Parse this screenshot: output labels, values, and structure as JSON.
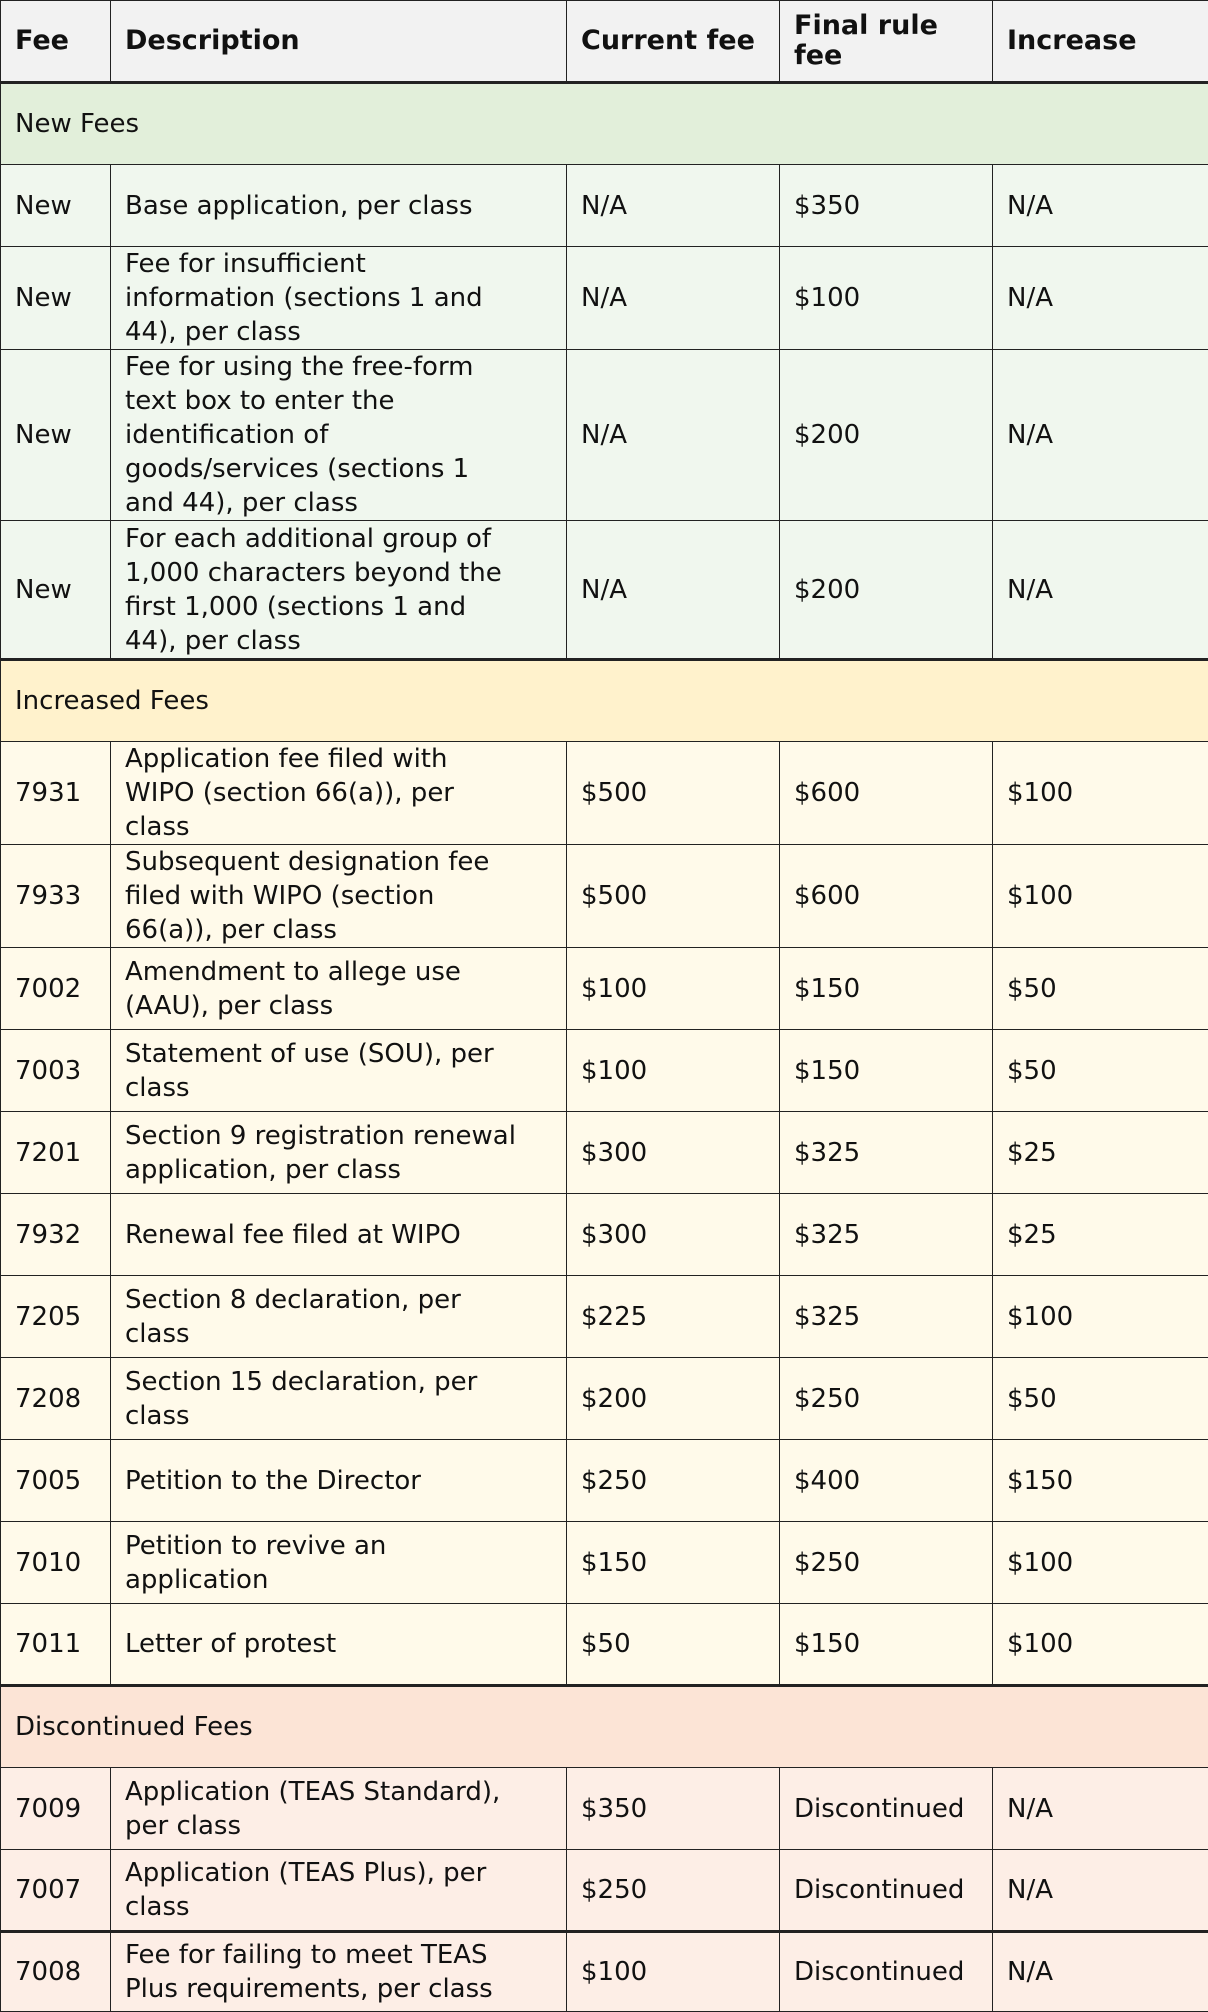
{
  "colors": {
    "header_bg": "#f2f2f2",
    "new_section_bg": "#e2efda",
    "new_row_bg": "#f0f7ee",
    "increased_section_bg": "#fff2cc",
    "increased_row_bg": "#fffaea",
    "discontinued_section_bg": "#fce4d6",
    "discontinued_row_bg": "#fdeee6"
  },
  "columns": [
    "Fee",
    "Description",
    "Current fee",
    "Final rule\nfee",
    "Increase"
  ],
  "sections": [
    {
      "title": "New Fees",
      "key": "new",
      "rows": [
        [
          "New",
          "Base application, per class",
          "N/A",
          "$350",
          "N/A"
        ],
        [
          "New",
          "Fee for insufficient\ninformation (sections 1 and\n44), per class",
          "N/A",
          "$100",
          "N/A"
        ],
        [
          "New",
          "Fee for using the free-form\ntext box to enter the\nidentification of\ngoods/services (sections 1\nand 44), per class",
          "N/A",
          "$200",
          "N/A"
        ],
        [
          "New",
          "For each additional group of\n1,000 characters beyond the\nfirst 1,000 (sections 1 and\n44), per class",
          "N/A",
          "$200",
          "N/A"
        ]
      ]
    },
    {
      "title": "Increased Fees",
      "key": "increased",
      "rows": [
        [
          "7931",
          "Application fee filed with\nWIPO (section 66(a)), per\nclass",
          "$500",
          "$600",
          "$100"
        ],
        [
          "7933",
          "Subsequent designation fee\nfiled with WIPO (section\n66(a)), per class",
          "$500",
          "$600",
          "$100"
        ],
        [
          "7002",
          "Amendment to allege use\n(AAU), per class",
          "$100",
          "$150",
          "$50"
        ],
        [
          "7003",
          "Statement of use (SOU), per\nclass",
          "$100",
          "$150",
          "$50"
        ],
        [
          "7201",
          "Section 9 registration renewal\napplication, per class",
          "$300",
          "$325",
          "$25"
        ],
        [
          "7932",
          "Renewal fee filed at WIPO",
          "$300",
          "$325",
          "$25"
        ],
        [
          "7205",
          "Section 8 declaration, per\nclass",
          "$225",
          "$325",
          "$100"
        ],
        [
          "7208",
          "Section 15 declaration, per\nclass",
          "$200",
          "$250",
          "$50"
        ],
        [
          "7005",
          "Petition to the Director",
          "$250",
          "$400",
          "$150"
        ],
        [
          "7010",
          "Petition to revive an\napplication",
          "$150",
          "$250",
          "$100"
        ],
        [
          "7011",
          "Letter of protest",
          "$50",
          "$150",
          "$100"
        ]
      ]
    },
    {
      "title": "Discontinued Fees",
      "key": "discontinued",
      "rows": [
        [
          "7009",
          "Application (TEAS Standard),\nper class",
          "$350",
          "Discontinued",
          "N/A"
        ],
        [
          "7007",
          "Application (TEAS Plus), per\nclass",
          "$250",
          "Discontinued",
          "N/A"
        ],
        [
          "7008",
          "Fee for failing to meet TEAS\nPlus requirements, per class",
          "$100",
          "Discontinued",
          "N/A"
        ]
      ]
    }
  ]
}
